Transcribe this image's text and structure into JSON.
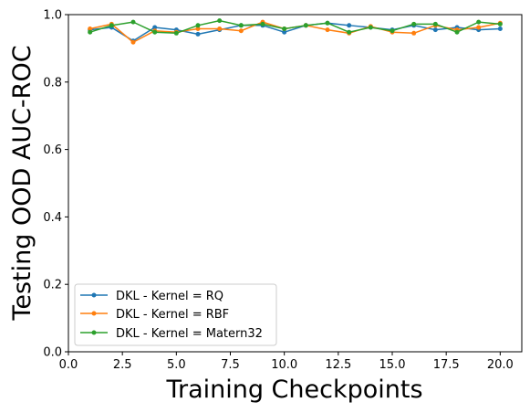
{
  "chart_data": {
    "type": "line",
    "title": "",
    "xlabel": "Training Checkpoints",
    "ylabel": "Testing OOD AUC-ROC",
    "xlim": [
      0.0,
      21.0
    ],
    "ylim": [
      0.0,
      1.0
    ],
    "xticks": [
      0.0,
      2.5,
      5.0,
      7.5,
      10.0,
      12.5,
      15.0,
      17.5,
      20.0
    ],
    "xtick_labels": [
      "0.0",
      "2.5",
      "5.0",
      "7.5",
      "10.0",
      "12.5",
      "15.0",
      "17.5",
      "20.0"
    ],
    "yticks": [
      0.0,
      0.2,
      0.4,
      0.6,
      0.8,
      1.0
    ],
    "ytick_labels": [
      "0.0",
      "0.2",
      "0.4",
      "0.6",
      "0.8",
      "1.0"
    ],
    "grid": false,
    "legend_position": "lower-left",
    "x": [
      1,
      2,
      3,
      4,
      5,
      6,
      7,
      8,
      9,
      10,
      11,
      12,
      13,
      14,
      15,
      16,
      17,
      18,
      19,
      20
    ],
    "series": [
      {
        "name": "DKL - Kernel = RQ",
        "color": "#1f77b4",
        "values": [
          0.955,
          0.962,
          0.922,
          0.962,
          0.955,
          0.942,
          0.955,
          0.968,
          0.968,
          0.948,
          0.968,
          0.975,
          0.968,
          0.962,
          0.955,
          0.968,
          0.955,
          0.962,
          0.955,
          0.958
        ]
      },
      {
        "name": "DKL - Kernel = RBF",
        "color": "#ff7f0e",
        "values": [
          0.958,
          0.972,
          0.918,
          0.952,
          0.948,
          0.958,
          0.958,
          0.952,
          0.978,
          0.958,
          0.968,
          0.955,
          0.945,
          0.965,
          0.948,
          0.945,
          0.968,
          0.955,
          0.962,
          0.975
        ]
      },
      {
        "name": "DKL - Kernel = Matern32",
        "color": "#2ca02c",
        "values": [
          0.948,
          0.968,
          0.978,
          0.948,
          0.945,
          0.968,
          0.982,
          0.968,
          0.972,
          0.958,
          0.968,
          0.975,
          0.948,
          0.962,
          0.952,
          0.972,
          0.972,
          0.948,
          0.978,
          0.972
        ]
      }
    ]
  }
}
